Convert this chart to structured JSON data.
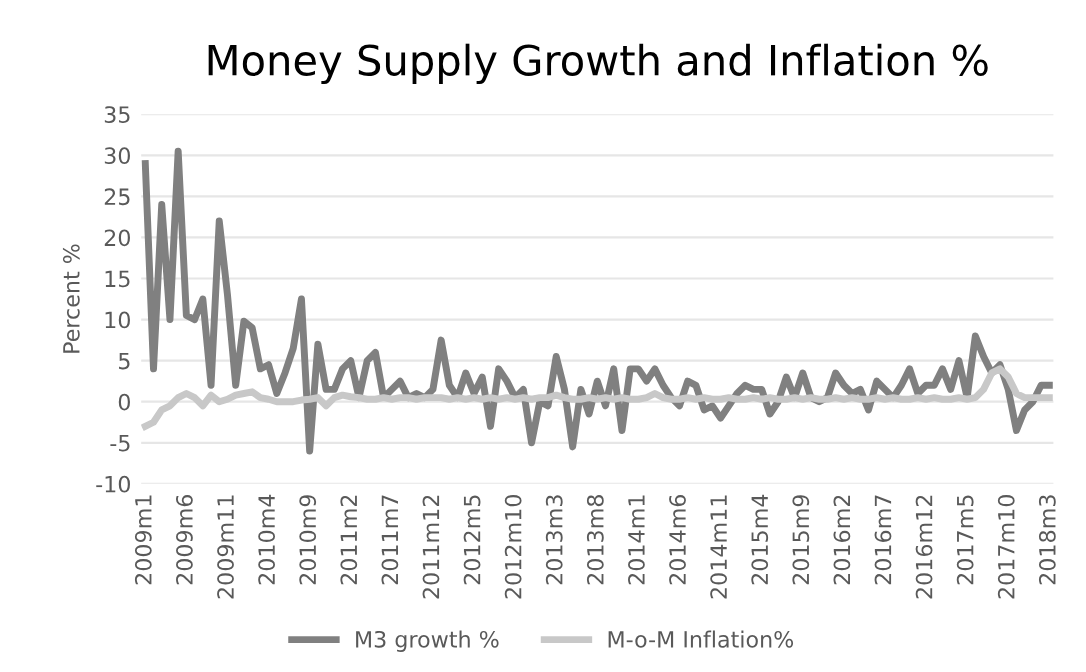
{
  "chart_data": {
    "type": "line",
    "title": "Money Supply Growth and Inflation %",
    "ylabel": "Percent %",
    "categories": [
      "2009m1",
      null,
      null,
      null,
      null,
      "2009m6",
      null,
      null,
      null,
      null,
      "2009m11",
      null,
      null,
      null,
      null,
      "2010m4",
      null,
      null,
      null,
      null,
      "2010m9",
      null,
      null,
      null,
      null,
      "2011m2",
      null,
      null,
      null,
      null,
      "2011m7",
      null,
      null,
      null,
      null,
      "2011m12",
      null,
      null,
      null,
      null,
      "2012m5",
      null,
      null,
      null,
      null,
      "2012m10",
      null,
      null,
      null,
      null,
      "2013m3",
      null,
      null,
      null,
      null,
      "2013m8",
      null,
      null,
      null,
      null,
      "2014m1",
      null,
      null,
      null,
      null,
      "2014m6",
      null,
      null,
      null,
      null,
      "2014m11",
      null,
      null,
      null,
      null,
      "2015m4",
      null,
      null,
      null,
      null,
      "2015m9",
      null,
      null,
      null,
      null,
      "2016m2",
      null,
      null,
      null,
      null,
      "2016m7",
      null,
      null,
      null,
      null,
      "2016m12",
      null,
      null,
      null,
      null,
      "2017m5",
      null,
      null,
      null,
      null,
      "2017m10",
      null,
      null,
      null,
      null,
      "2018m3"
    ],
    "series": [
      {
        "name": "M3 growth %",
        "color": "#808080",
        "values": [
          29,
          4,
          24,
          10,
          30.5,
          10.5,
          10,
          12.5,
          2,
          22,
          13,
          2,
          9.8,
          9,
          4,
          4.5,
          1,
          3.5,
          6.5,
          12.5,
          -6,
          7,
          1.5,
          1.5,
          4,
          5,
          0.5,
          5,
          6,
          0.5,
          1.5,
          2.5,
          0.5,
          1,
          0.5,
          1.5,
          7.5,
          2,
          0.5,
          3.5,
          1,
          3,
          -3,
          4,
          2.5,
          0.5,
          1.5,
          -5,
          0,
          -0.5,
          5.5,
          1.5,
          -5.5,
          1.5,
          -1.5,
          2.5,
          -0.5,
          4,
          -3.5,
          4,
          4,
          2.5,
          4,
          2,
          0.5,
          -0.5,
          2.5,
          2,
          -1,
          -0.5,
          -2,
          -0.5,
          1,
          2,
          1.5,
          1.5,
          -1.5,
          0,
          3,
          0.5,
          3.5,
          0.5,
          0,
          0.5,
          3.5,
          2,
          1,
          1.5,
          -1,
          2.5,
          1.5,
          0.5,
          2,
          4,
          1,
          2,
          2,
          4,
          1.5,
          5,
          0.5,
          8,
          5.5,
          3.5,
          4.5,
          1.5,
          -3.5,
          -1,
          0,
          2,
          2
        ]
      },
      {
        "name": "M-o-M Inflation%",
        "color": "#c8c8c8",
        "values": [
          -3,
          -2.5,
          -1,
          -0.5,
          0.5,
          1,
          0.5,
          -0.5,
          0.8,
          0,
          0.3,
          0.8,
          1,
          1.2,
          0.5,
          0.3,
          0,
          0,
          0,
          0.2,
          0.3,
          0.5,
          -0.5,
          0.5,
          0.8,
          0.6,
          0.5,
          0.3,
          0.3,
          0.5,
          0.3,
          0.5,
          0.5,
          0.3,
          0.5,
          0.5,
          0.5,
          0.3,
          0.5,
          0.3,
          0.5,
          0.3,
          0.5,
          0.3,
          0.5,
          0.3,
          0.5,
          0.3,
          0.5,
          0.5,
          0.8,
          0.5,
          0.3,
          0.3,
          0.5,
          0.3,
          0.5,
          0.3,
          0.5,
          0.3,
          0.3,
          0.5,
          1,
          0.5,
          0.3,
          0.3,
          0.5,
          0.3,
          0.5,
          0.3,
          0.3,
          0.5,
          0.3,
          0.3,
          0.5,
          0.3,
          0.5,
          0.3,
          0.3,
          0.5,
          0.3,
          0.5,
          0.3,
          0.3,
          0.5,
          0.3,
          0.5,
          0.3,
          0.3,
          0.5,
          0.3,
          0.5,
          0.3,
          0.3,
          0.5,
          0.3,
          0.5,
          0.3,
          0.3,
          0.5,
          0.3,
          0.5,
          1.5,
          3.5,
          4,
          3,
          1,
          0.5,
          0.5,
          0.5,
          0.5
        ]
      }
    ],
    "ylim": [
      -10,
      35
    ],
    "yticks": [
      -10,
      -5,
      0,
      5,
      10,
      15,
      20,
      25,
      30,
      35
    ],
    "grid": "y",
    "legend": "bottom",
    "line_style": "solid",
    "marker": "none"
  }
}
